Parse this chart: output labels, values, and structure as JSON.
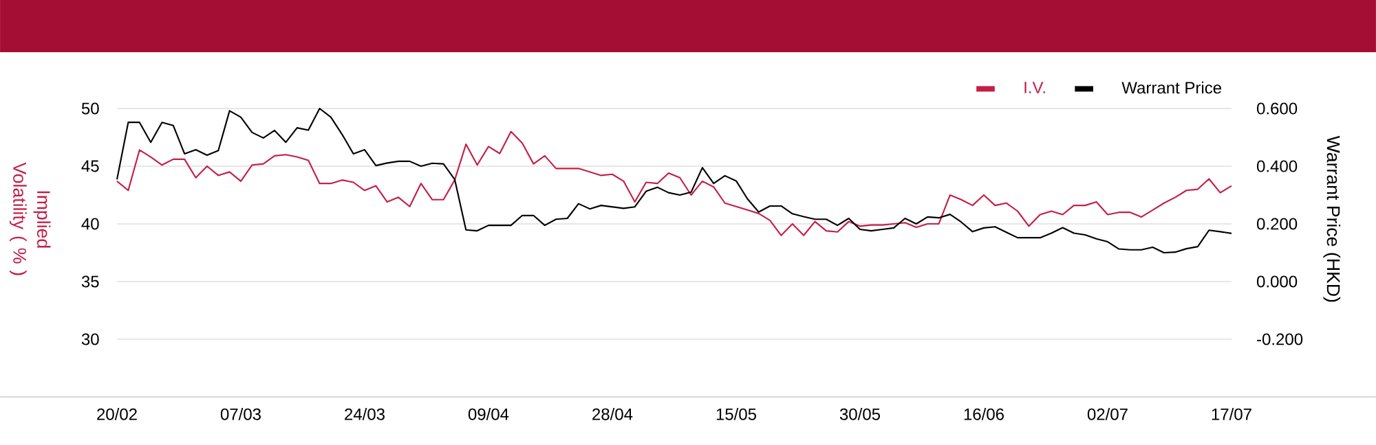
{
  "chart_data": {
    "type": "line",
    "categories": [
      "20/02",
      null,
      null,
      null,
      null,
      null,
      null,
      null,
      null,
      null,
      null,
      "07/03",
      null,
      null,
      null,
      null,
      null,
      null,
      null,
      null,
      null,
      null,
      "24/03",
      null,
      null,
      null,
      null,
      null,
      null,
      null,
      null,
      null,
      null,
      "09/04",
      null,
      null,
      null,
      null,
      null,
      null,
      null,
      null,
      null,
      null,
      "28/04",
      null,
      null,
      null,
      null,
      null,
      null,
      null,
      null,
      null,
      null,
      "15/05",
      null,
      null,
      null,
      null,
      null,
      null,
      null,
      null,
      null,
      null,
      "30/05",
      null,
      null,
      null,
      null,
      null,
      null,
      null,
      null,
      null,
      null,
      "16/06",
      null,
      null,
      null,
      null,
      null,
      null,
      null,
      null,
      null,
      null,
      "02/07",
      null,
      null,
      null,
      null,
      null,
      null,
      null,
      null,
      null,
      null,
      "17/07"
    ],
    "series": [
      {
        "name": "I.V.",
        "color": "#c41e47",
        "values": [
          43.7,
          42.9,
          46.4,
          45.8,
          45.1,
          45.6,
          45.6,
          44.0,
          45.0,
          44.2,
          44.5,
          43.7,
          45.1,
          45.2,
          45.9,
          46.0,
          45.8,
          45.5,
          43.5,
          43.5,
          43.8,
          43.6,
          42.9,
          43.3,
          41.9,
          42.3,
          41.5,
          43.5,
          42.1,
          42.1,
          43.8,
          46.9,
          45.1,
          46.7,
          46.1,
          48.0,
          47.0,
          45.2,
          45.9,
          44.8,
          44.8,
          44.8,
          44.5,
          44.2,
          44.3,
          43.7,
          41.9,
          43.6,
          43.5,
          44.4,
          44.0,
          42.5,
          43.7,
          43.2,
          41.8,
          41.5,
          41.2,
          40.9,
          40.3,
          39.0,
          40.0,
          39.0,
          40.2,
          39.4,
          39.3,
          40.2,
          39.8,
          39.9,
          39.9,
          40.0,
          40.1,
          39.7,
          40.0,
          40.0,
          42.5,
          42.1,
          41.6,
          42.5,
          41.6,
          41.8,
          41.1,
          39.8,
          40.8,
          41.1,
          40.8,
          41.6,
          41.6,
          41.9,
          40.8,
          41.0,
          41.0,
          40.6,
          41.2,
          41.8,
          42.3,
          42.9,
          43.0,
          43.9,
          42.7,
          43.3
        ]
      },
      {
        "name": "Warrant Price",
        "color": "#000000",
        "axis": "y2",
        "values": [
          0.354,
          0.552,
          0.552,
          0.483,
          0.552,
          0.541,
          0.443,
          0.457,
          0.438,
          0.454,
          0.592,
          0.57,
          0.517,
          0.498,
          0.524,
          0.483,
          0.533,
          0.525,
          0.6,
          0.57,
          0.51,
          0.443,
          0.457,
          0.402,
          0.411,
          0.417,
          0.417,
          0.4,
          0.41,
          0.408,
          0.354,
          0.179,
          0.176,
          0.195,
          0.195,
          0.195,
          0.229,
          0.229,
          0.195,
          0.216,
          0.219,
          0.27,
          0.252,
          0.264,
          0.259,
          0.254,
          0.259,
          0.313,
          0.327,
          0.308,
          0.3,
          0.31,
          0.395,
          0.34,
          0.367,
          0.349,
          0.287,
          0.241,
          0.262,
          0.262,
          0.235,
          0.225,
          0.216,
          0.216,
          0.195,
          0.219,
          0.181,
          0.176,
          0.181,
          0.186,
          0.219,
          0.2,
          0.224,
          0.221,
          0.233,
          0.206,
          0.173,
          0.186,
          0.19,
          0.171,
          0.152,
          0.152,
          0.152,
          0.168,
          0.187,
          0.168,
          0.162,
          0.148,
          0.138,
          0.113,
          0.11,
          0.11,
          0.119,
          0.1,
          0.102,
          0.114,
          0.121,
          0.178,
          0.173,
          0.167
        ]
      }
    ],
    "ylabel": "Implied Volatility ( % )",
    "y2label": "Warrant Price (HKD)",
    "ylim": [
      30,
      50
    ],
    "yticks": [
      30,
      35,
      40,
      45,
      50
    ],
    "y2lim": [
      -0.2,
      0.6
    ],
    "y2ticks": [
      {
        "value": -0.2,
        "label": "-0.200"
      },
      {
        "value": 0,
        "label": "0.000"
      },
      {
        "value": 0.2,
        "label": "0.200"
      },
      {
        "value": 0.4,
        "label": "0.400"
      },
      {
        "value": 0.6,
        "label": "0.600"
      }
    ],
    "grid": "y",
    "legend": "top right"
  }
}
